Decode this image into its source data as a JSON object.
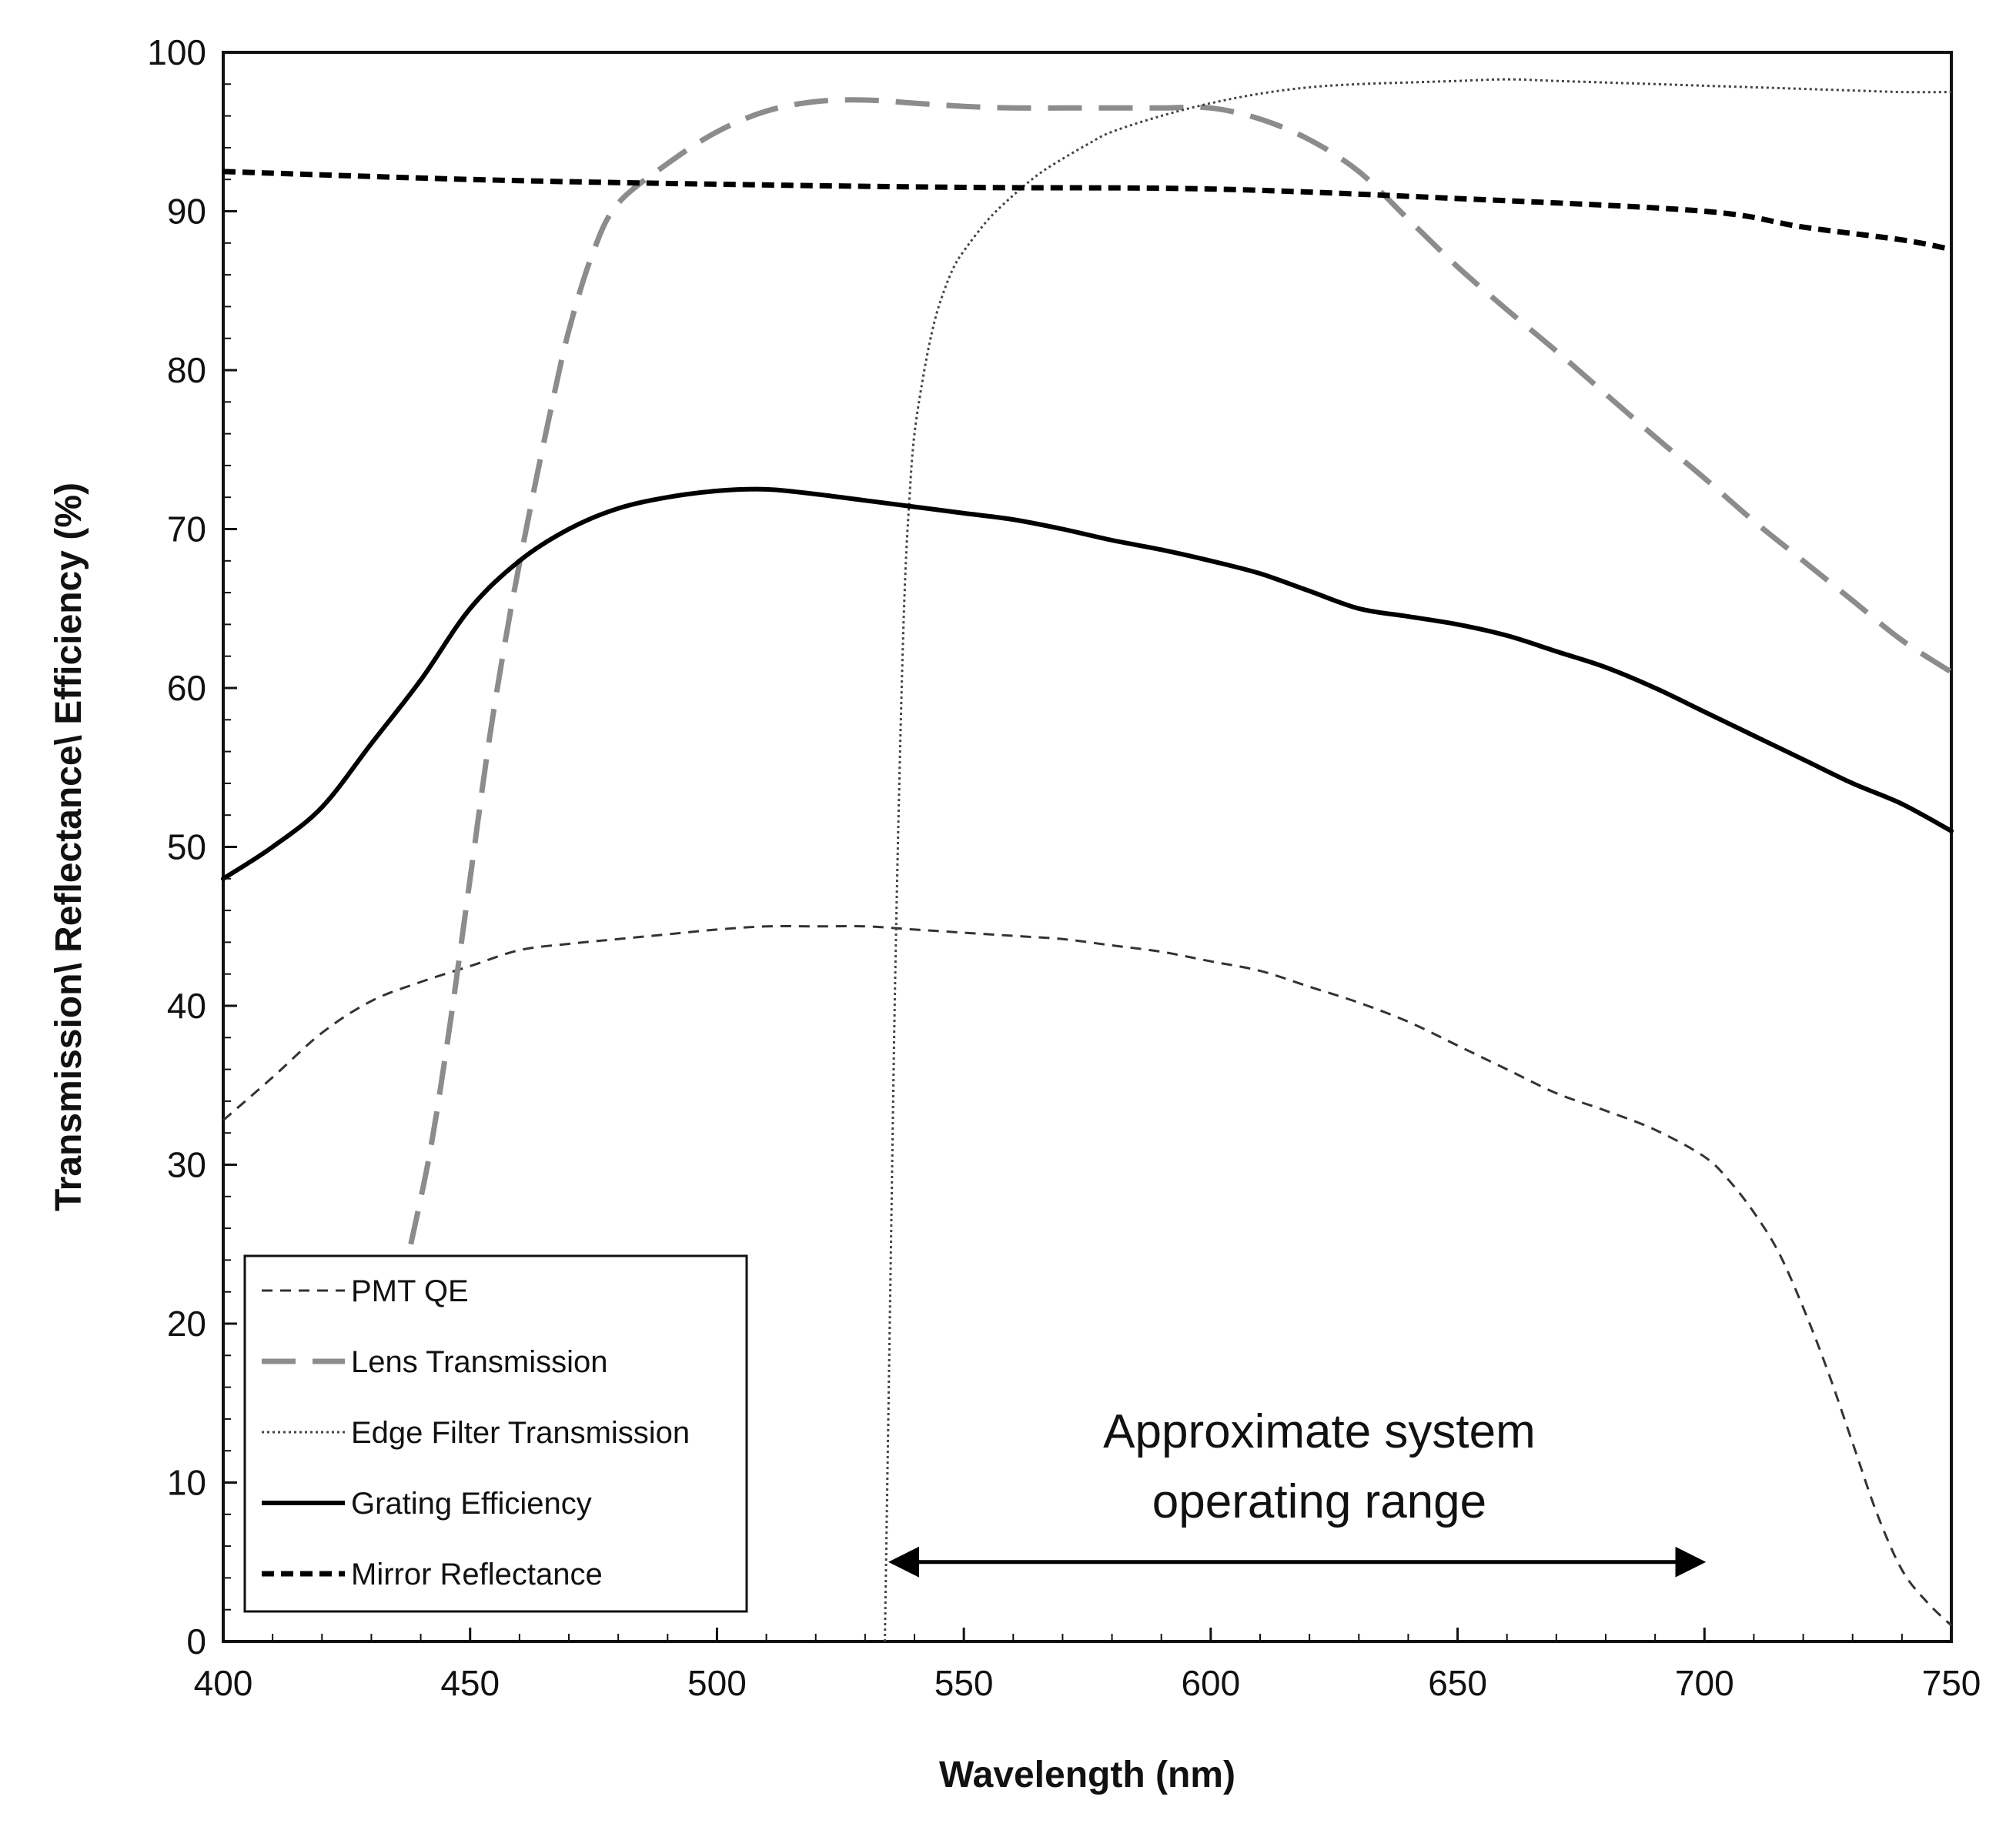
{
  "chart_data": {
    "type": "line",
    "title": "",
    "xlabel": "Wavelength (nm)",
    "ylabel": "Transmission\\ Reflectance\\ Efficiency (%)",
    "xlim": [
      400,
      750
    ],
    "ylim": [
      0,
      100
    ],
    "xticks": [
      400,
      450,
      500,
      550,
      600,
      650,
      700,
      750
    ],
    "yticks": [
      0,
      10,
      20,
      30,
      40,
      50,
      60,
      70,
      80,
      90,
      100
    ],
    "grid": false,
    "legend_position": "bottom-left",
    "series": [
      {
        "name": "PMT QE",
        "style": "dashed-thin",
        "color": "#333333",
        "x": [
          400,
          410,
          420,
          430,
          440,
          450,
          460,
          470,
          480,
          490,
          500,
          510,
          520,
          530,
          540,
          550,
          560,
          570,
          580,
          590,
          600,
          610,
          620,
          630,
          640,
          650,
          660,
          670,
          680,
          690,
          700,
          705,
          710,
          715,
          720,
          725,
          730,
          735,
          740,
          745,
          750
        ],
        "y": [
          32.8,
          35.5,
          38.3,
          40.3,
          41.5,
          42.5,
          43.5,
          43.9,
          44.2,
          44.5,
          44.8,
          45.0,
          45.0,
          45.0,
          44.8,
          44.6,
          44.4,
          44.2,
          43.8,
          43.4,
          42.8,
          42.2,
          41.2,
          40.2,
          39.0,
          37.5,
          36.0,
          34.5,
          33.4,
          32.2,
          30.5,
          29.0,
          27.0,
          24.5,
          21.0,
          17.0,
          12.5,
          8.0,
          4.5,
          2.5,
          1.0
        ]
      },
      {
        "name": "Lens Transmission",
        "style": "long-dash",
        "color": "#8c8c8c",
        "x": [
          438,
          442,
          446,
          450,
          454,
          458,
          462,
          466,
          470,
          475,
          480,
          490,
          500,
          510,
          520,
          530,
          540,
          550,
          560,
          570,
          580,
          590,
          600,
          610,
          620,
          630,
          640,
          650,
          660,
          670,
          680,
          690,
          700,
          710,
          720,
          730,
          740,
          750
        ],
        "y": [
          25.0,
          31.0,
          39.0,
          48.0,
          57.0,
          64.5,
          71.0,
          77.0,
          82.5,
          87.5,
          90.5,
          93.0,
          95.0,
          96.3,
          96.9,
          97.0,
          96.8,
          96.6,
          96.5,
          96.5,
          96.5,
          96.5,
          96.5,
          95.8,
          94.5,
          92.5,
          89.5,
          86.5,
          83.8,
          81.2,
          78.5,
          75.8,
          73.2,
          70.5,
          68.0,
          65.5,
          63.0,
          61.0
        ]
      },
      {
        "name": "Edge Filter Transmission",
        "style": "dotted",
        "color": "#444444",
        "x": [
          534,
          535,
          536,
          537,
          538,
          539,
          540,
          542,
          544,
          546,
          548,
          550,
          555,
          560,
          565,
          570,
          575,
          580,
          590,
          600,
          610,
          620,
          630,
          640,
          650,
          660,
          670,
          680,
          690,
          700,
          710,
          720,
          730,
          740,
          750
        ],
        "y": [
          0,
          20,
          40,
          55,
          66,
          72,
          76,
          80,
          83,
          85,
          86.5,
          87.5,
          89.5,
          91.0,
          92.3,
          93.3,
          94.2,
          95.0,
          96.0,
          96.8,
          97.4,
          97.8,
          98.0,
          98.1,
          98.2,
          98.3,
          98.2,
          98.1,
          98.0,
          97.9,
          97.8,
          97.7,
          97.6,
          97.5,
          97.5
        ]
      },
      {
        "name": "Grating Efficiency",
        "style": "solid",
        "color": "#000000",
        "x": [
          400,
          410,
          420,
          430,
          440,
          450,
          460,
          470,
          480,
          490,
          500,
          510,
          520,
          530,
          540,
          550,
          560,
          570,
          580,
          590,
          600,
          610,
          620,
          630,
          640,
          650,
          660,
          670,
          680,
          690,
          700,
          710,
          720,
          730,
          740,
          750
        ],
        "y": [
          48.0,
          50.0,
          52.5,
          56.5,
          60.5,
          65.0,
          68.0,
          70.0,
          71.3,
          72.0,
          72.4,
          72.5,
          72.2,
          71.8,
          71.4,
          71.0,
          70.6,
          70.0,
          69.3,
          68.7,
          68.0,
          67.2,
          66.1,
          65.0,
          64.5,
          64.0,
          63.3,
          62.3,
          61.3,
          60.0,
          58.5,
          57.0,
          55.5,
          54.0,
          52.7,
          51.0
        ]
      },
      {
        "name": "Mirror Reflectance",
        "style": "dashed-bold",
        "color": "#000000",
        "x": [
          400,
          450,
          500,
          550,
          600,
          650,
          700,
          720,
          740,
          750
        ],
        "y": [
          92.5,
          92.0,
          91.7,
          91.5,
          91.4,
          90.8,
          90.0,
          89.0,
          88.2,
          87.6
        ]
      }
    ],
    "annotation": {
      "text_line1": "Approximate system",
      "text_line2": "operating range",
      "arrow_from": 535,
      "arrow_to": 700,
      "arrow_y": 5,
      "text_x": 622,
      "text_y1": 12.2,
      "text_y2": 7.8
    }
  }
}
